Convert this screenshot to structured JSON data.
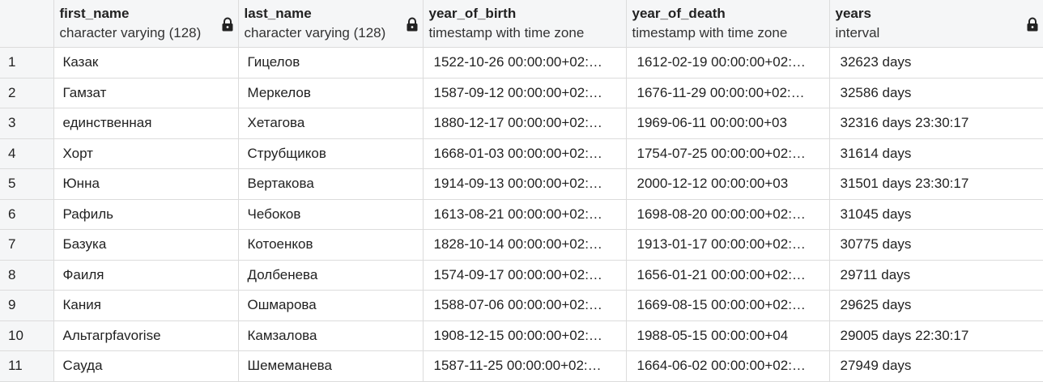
{
  "columns": [
    {
      "name": "first_name",
      "type": "character varying (128)"
    },
    {
      "name": "last_name",
      "type": "character varying (128)"
    },
    {
      "name": "year_of_birth",
      "type": "timestamp with time zone"
    },
    {
      "name": "year_of_death",
      "type": "timestamp with time zone"
    },
    {
      "name": "years",
      "type": "interval"
    }
  ],
  "icons": {
    "column_lock": "lock-icon"
  },
  "rows": [
    {
      "num": "1",
      "first_name": "Казак",
      "last_name": "Гицелов",
      "year_of_birth": "1522-10-26 00:00:00+02:…",
      "year_of_death": "1612-02-19 00:00:00+02:…",
      "years": "32623 days"
    },
    {
      "num": "2",
      "first_name": "Гамзат",
      "last_name": "Меркелов",
      "year_of_birth": "1587-09-12 00:00:00+02:…",
      "year_of_death": "1676-11-29 00:00:00+02:…",
      "years": "32586 days"
    },
    {
      "num": "3",
      "first_name": "единственная",
      "last_name": "Хетагова",
      "year_of_birth": "1880-12-17 00:00:00+02:…",
      "year_of_death": "1969-06-11 00:00:00+03",
      "years": "32316 days 23:30:17"
    },
    {
      "num": "4",
      "first_name": "Хорт",
      "last_name": "Струбщиков",
      "year_of_birth": "1668-01-03 00:00:00+02:…",
      "year_of_death": "1754-07-25 00:00:00+02:…",
      "years": "31614 days"
    },
    {
      "num": "5",
      "first_name": "Юнна",
      "last_name": "Вертакова",
      "year_of_birth": "1914-09-13 00:00:00+02:…",
      "year_of_death": "2000-12-12 00:00:00+03",
      "years": "31501 days 23:30:17"
    },
    {
      "num": "6",
      "first_name": "Рафиль",
      "last_name": "Чебоков",
      "year_of_birth": "1613-08-21 00:00:00+02:…",
      "year_of_death": "1698-08-20 00:00:00+02:…",
      "years": "31045 days"
    },
    {
      "num": "7",
      "first_name": "Базука",
      "last_name": "Котоенков",
      "year_of_birth": "1828-10-14 00:00:00+02:…",
      "year_of_death": "1913-01-17 00:00:00+02:…",
      "years": "30775 days"
    },
    {
      "num": "8",
      "first_name": "Фаиля",
      "last_name": "Долбенева",
      "year_of_birth": "1574-09-17 00:00:00+02:…",
      "year_of_death": "1656-01-21 00:00:00+02:…",
      "years": "29711 days"
    },
    {
      "num": "9",
      "first_name": "Кания",
      "last_name": "Ошмарова",
      "year_of_birth": "1588-07-06 00:00:00+02:…",
      "year_of_death": "1669-08-15 00:00:00+02:…",
      "years": "29625 days"
    },
    {
      "num": "10",
      "first_name": "Альтагрfavorise",
      "last_name": "Камзалова",
      "year_of_birth": "1908-12-15 00:00:00+02:…",
      "year_of_death": "1988-05-15 00:00:00+04",
      "years": "29005 days 22:30:17"
    },
    {
      "num": "11",
      "first_name": "Сауда",
      "last_name": "Шемеманева",
      "year_of_birth": "1587-11-25 00:00:00+02:…",
      "year_of_death": "1664-06-02 00:00:00+02:…",
      "years": "27949 days"
    }
  ]
}
